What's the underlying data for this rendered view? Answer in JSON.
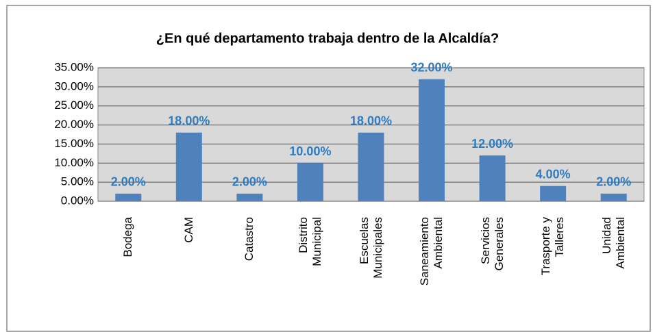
{
  "chart_data": {
    "type": "bar",
    "title": "¿En qué departamento trabaja dentro de la Alcaldía?",
    "categories": [
      "Bodega",
      "CAM",
      "Catastro",
      "Distrito Municipal",
      "Escuelas Municipales",
      "Saneamiento Ambiental",
      "Servicios Generales",
      "Trasporte y Talleres",
      "Unidad Ambiental"
    ],
    "values": [
      2,
      18,
      2,
      10,
      18,
      32,
      12,
      4,
      2
    ],
    "value_labels": [
      "2.00%",
      "18.00%",
      "2.00%",
      "10.00%",
      "18.00%",
      "32.00%",
      "12.00%",
      "4.00%",
      "2.00%"
    ],
    "color": "#4f81bd",
    "ylim": [
      0,
      35
    ],
    "yticks": [
      {
        "value": 0,
        "label": "0.00%"
      },
      {
        "value": 5,
        "label": "5.00%"
      },
      {
        "value": 10,
        "label": "10.00%"
      },
      {
        "value": 15,
        "label": "15.00%"
      },
      {
        "value": 20,
        "label": "20.00%"
      },
      {
        "value": 25,
        "label": "25.00%"
      },
      {
        "value": 30,
        "label": "30.00%"
      },
      {
        "value": 35,
        "label": "35.00%"
      }
    ],
    "grid": true
  }
}
